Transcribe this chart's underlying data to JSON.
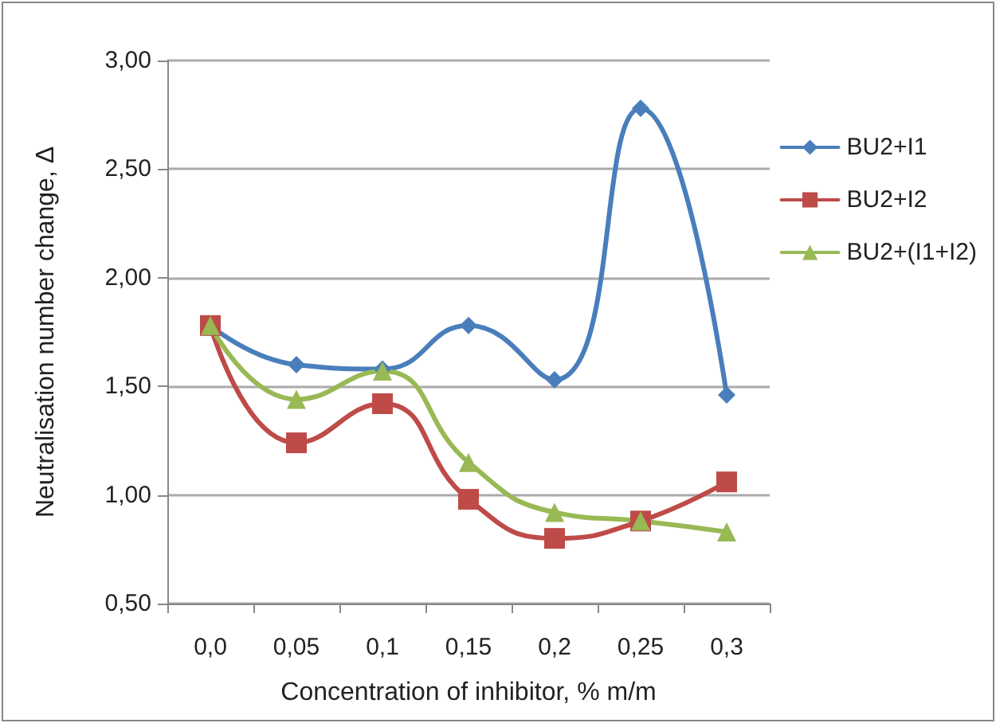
{
  "chart_data": {
    "type": "line",
    "xlabel": "Concentration of inhibitor, % m/m",
    "ylabel": "Neutralisation number change, Δ",
    "categories": [
      "0,0",
      "0,05",
      "0,1",
      "0,15",
      "0,2",
      "0,25",
      "0,3"
    ],
    "series": [
      {
        "name": "BU2+I1",
        "color": "#4a7ebb",
        "marker": "diamond",
        "values": [
          1.78,
          1.6,
          1.58,
          1.78,
          1.53,
          2.78,
          1.46
        ]
      },
      {
        "name": "BU2+I2",
        "color": "#be4b48",
        "marker": "square",
        "values": [
          1.78,
          1.24,
          1.42,
          0.98,
          0.8,
          0.88,
          1.06
        ]
      },
      {
        "name": "BU2+(I1+I2)",
        "color": "#98b954",
        "marker": "triangle",
        "values": [
          1.78,
          1.44,
          1.57,
          1.15,
          0.92,
          0.88,
          0.83
        ]
      }
    ],
    "ylim": [
      0.5,
      3
    ],
    "yticks": [
      {
        "value": 0.5,
        "label": "0,50"
      },
      {
        "value": 1,
        "label": "1,00"
      },
      {
        "value": 1.5,
        "label": "1,50"
      },
      {
        "value": 2,
        "label": "2,00"
      },
      {
        "value": 2.5,
        "label": "2,50"
      },
      {
        "value": 3,
        "label": "3,00"
      }
    ],
    "grid": "y",
    "legend": "right",
    "line_style": "solid"
  }
}
